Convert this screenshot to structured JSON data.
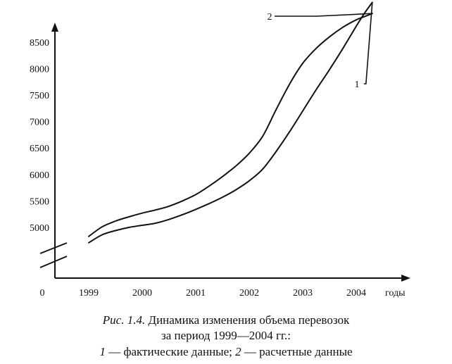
{
  "chart_data": {
    "type": "line",
    "origin_label": "0",
    "xlabel": "годы",
    "ylabel": "",
    "x_ticks": [
      "1999",
      "2000",
      "2001",
      "2002",
      "2003",
      "2004"
    ],
    "y_ticks": [
      5000,
      5500,
      6000,
      6500,
      7000,
      7500,
      8000,
      8500
    ],
    "ylim": [
      4500,
      9050
    ],
    "xlim": [
      1998.2,
      2004.8
    ],
    "axis_break": true,
    "grid": false,
    "legend": "none",
    "series": [
      {
        "label": "1",
        "x": [
          1999.0,
          1999.25,
          1999.5,
          1999.75,
          2000.0,
          2000.25,
          2000.5,
          2000.75,
          2001.0,
          2001.25,
          2001.5,
          2001.75,
          2002.0,
          2002.25,
          2002.5,
          2002.75,
          2003.0,
          2003.25,
          2003.5,
          2003.75,
          2004.0,
          2004.15,
          2004.3
        ],
        "values": [
          4710,
          4860,
          4940,
          5000,
          5040,
          5080,
          5150,
          5240,
          5340,
          5450,
          5570,
          5710,
          5880,
          6100,
          6430,
          6800,
          7200,
          7600,
          7980,
          8380,
          8800,
          9040,
          9250
        ]
      },
      {
        "label": "2",
        "x": [
          1999.0,
          1999.25,
          1999.5,
          1999.75,
          2000.0,
          2000.25,
          2000.5,
          2000.75,
          2001.0,
          2001.25,
          2001.5,
          2001.75,
          2002.0,
          2002.25,
          2002.5,
          2002.75,
          2003.0,
          2003.25,
          2003.5,
          2003.75,
          2004.0,
          2004.15,
          2004.3
        ],
        "values": [
          4830,
          5010,
          5120,
          5200,
          5270,
          5330,
          5400,
          5500,
          5620,
          5780,
          5960,
          6160,
          6400,
          6720,
          7220,
          7700,
          8100,
          8380,
          8600,
          8780,
          8920,
          8980,
          9040
        ]
      }
    ],
    "annotations": [
      {
        "text": "1",
        "series": "1"
      },
      {
        "text": "2",
        "series": "2"
      }
    ]
  },
  "caption": {
    "fig_label": "Рис. 1.4.",
    "title": " Динамика изменения объема перевозок",
    "period": "за период 1999—2004 гг.:",
    "legend_1_num": "1",
    "legend_1_text": " — фактические данные; ",
    "legend_2_num": "2",
    "legend_2_text": " — расчетные данные"
  }
}
